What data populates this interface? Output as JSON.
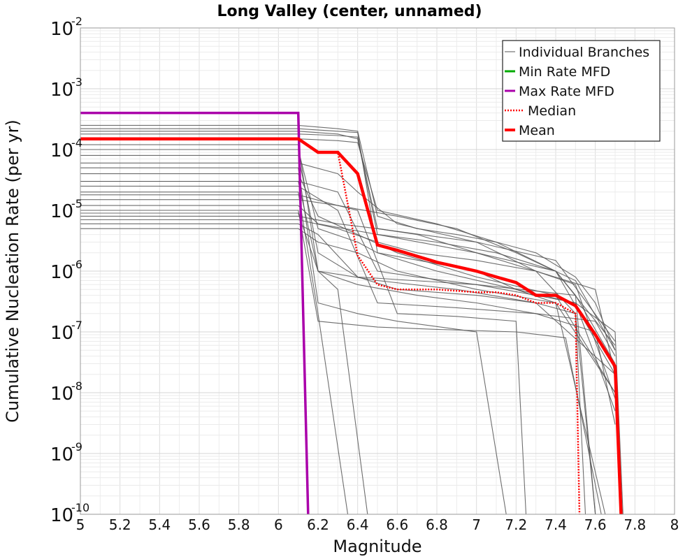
{
  "chart_data": {
    "type": "line",
    "title": "Long Valley (center, unnamed)",
    "xlabel": "Magnitude",
    "ylabel": "Cumulative Nucleation Rate (per yr)",
    "xlim": [
      5,
      8
    ],
    "ylim": [
      1e-10,
      0.01
    ],
    "yscale": "log",
    "grid": true,
    "legend_position": "top-right",
    "x_ticks": [
      "5",
      "5.2",
      "5.4",
      "5.6",
      "5.8",
      "6",
      "6.2",
      "6.4",
      "6.6",
      "6.8",
      "7",
      "7.2",
      "7.4",
      "7.6",
      "7.8",
      "8"
    ],
    "y_ticks": [
      {
        "base": "10",
        "exp": "-10",
        "value": 1e-10
      },
      {
        "base": "10",
        "exp": "-9",
        "value": 1e-09
      },
      {
        "base": "10",
        "exp": "-8",
        "value": 1e-08
      },
      {
        "base": "10",
        "exp": "-7",
        "value": 1e-07
      },
      {
        "base": "10",
        "exp": "-6",
        "value": 1e-06
      },
      {
        "base": "10",
        "exp": "-5",
        "value": 1e-05
      },
      {
        "base": "10",
        "exp": "-4",
        "value": 0.0001
      },
      {
        "base": "10",
        "exp": "-3",
        "value": 0.001
      },
      {
        "base": "10",
        "exp": "-2",
        "value": 0.01
      }
    ],
    "series": [
      {
        "name": "Individual Branches",
        "color": "#555555",
        "style": "thin",
        "lines": [
          {
            "x": [
              5,
              6.1,
              6.3,
              6.4,
              6.5,
              6.7,
              6.9,
              7.1,
              7.3,
              7.5,
              7.6,
              7.7
            ],
            "y": [
              0.00025,
              0.00025,
              0.00022,
              0.0002,
              8e-06,
              5e-06,
              4e-06,
              3e-06,
              2e-06,
              8e-07,
              3e-07,
              5e-08
            ]
          },
          {
            "x": [
              5,
              6.1,
              6.3,
              6.4,
              6.5,
              6.8,
              7.1,
              7.4,
              7.5,
              7.6
            ],
            "y": [
              0.0002,
              0.0002,
              0.00018,
              0.00015,
              4e-06,
              3e-06,
              2e-06,
              1e-06,
              4e-07,
              1e-10
            ]
          },
          {
            "x": [
              5,
              6.1,
              6.2,
              6.3,
              6.45
            ],
            "y": [
              0.00012,
              0.00012,
              1e-06,
              5e-07,
              1e-10
            ]
          },
          {
            "x": [
              5,
              6.1,
              6.2,
              6.4,
              6.6,
              7.0,
              7.3,
              7.5,
              7.55
            ],
            "y": [
              8e-05,
              8e-05,
              2e-06,
              8e-07,
              5e-07,
              4e-07,
              3e-07,
              2e-07,
              1e-10
            ]
          },
          {
            "x": [
              5,
              6.1,
              6.2,
              6.4,
              6.6,
              7.0,
              7.15
            ],
            "y": [
              5e-05,
              5e-05,
              3e-07,
              2e-07,
              1.5e-07,
              1e-07,
              1e-10
            ]
          },
          {
            "x": [
              5,
              6.1,
              6.3,
              6.5,
              6.7,
              7.0,
              7.3,
              7.5,
              7.7,
              7.74
            ],
            "y": [
              3e-05,
              3e-05,
              2e-05,
              1e-06,
              8e-07,
              6e-07,
              4e-07,
              3e-07,
              1e-07,
              1e-10
            ]
          },
          {
            "x": [
              5,
              6.1,
              6.2,
              6.35
            ],
            "y": [
              2e-05,
              2e-05,
              2e-07,
              1e-10
            ]
          },
          {
            "x": [
              5,
              6.1,
              6.3,
              6.4,
              6.6,
              6.9,
              7.2,
              7.25
            ],
            "y": [
              1.5e-05,
              1.5e-05,
              1.2e-05,
              1e-05,
              2e-07,
              1.8e-07,
              1.5e-07,
              1e-10
            ]
          },
          {
            "x": [
              5,
              6.1,
              6.2,
              6.5,
              6.8,
              7.2,
              7.45,
              7.63
            ],
            "y": [
              1e-05,
              1e-05,
              1.5e-07,
              1.2e-07,
              1.1e-07,
              1e-07,
              8e-08,
              1e-10
            ]
          },
          {
            "x": [
              5,
              6.1,
              6.3,
              6.5,
              6.7,
              7.0,
              7.3,
              7.6,
              7.7
            ],
            "y": [
              7e-06,
              7e-06,
              5e-06,
              3e-06,
              2e-06,
              1.5e-06,
              1e-06,
              5e-07,
              2e-08
            ]
          },
          {
            "x": [
              5,
              6.1,
              6.2,
              6.4,
              6.6,
              7.0,
              7.4,
              7.65
            ],
            "y": [
              5e-06,
              5e-06,
              3e-06,
              2e-06,
              1e-06,
              5e-07,
              3e-07,
              1e-10
            ]
          },
          {
            "x": [
              5,
              6.1,
              6.3,
              6.4,
              6.5,
              6.7,
              7.0,
              7.3,
              7.5,
              7.7
            ],
            "y": [
              0.00018,
              0.00018,
              0.00017,
              0.00016,
              5e-06,
              4e-06,
              2e-06,
              1e-06,
              6e-07,
              8e-09
            ]
          },
          {
            "x": [
              5,
              6.1,
              6.2,
              6.4,
              6.5,
              6.8,
              7.2,
              7.5,
              7.7
            ],
            "y": [
              0.0001,
              0.0001,
              5e-06,
              3e-06,
              2e-06,
              1e-06,
              5e-07,
              3e-07,
              5e-09
            ]
          },
          {
            "x": [
              5,
              6.1,
              6.3,
              6.4,
              6.6,
              7.0,
              7.3,
              7.5,
              7.6
            ],
            "y": [
              6e-05,
              6e-05,
              4e-05,
              2e-05,
              6e-06,
              3e-06,
              1e-06,
              2e-07,
              1e-10
            ]
          },
          {
            "x": [
              5,
              6.1,
              6.2,
              6.4,
              6.6,
              7.0,
              7.4,
              7.7
            ],
            "y": [
              4e-05,
              4e-05,
              8e-06,
              4e-06,
              2e-06,
              8e-07,
              4e-07,
              1e-08
            ]
          },
          {
            "x": [
              5,
              6.1,
              6.3,
              6.5,
              6.9,
              7.3,
              7.6,
              7.7
            ],
            "y": [
              2.5e-05,
              2.5e-05,
              1e-05,
              3e-07,
              2.5e-07,
              2e-07,
              1.5e-07,
              4e-08
            ]
          },
          {
            "x": [
              5,
              6.1,
              6.2,
              6.5,
              7.0,
              7.4,
              7.7
            ],
            "y": [
              1.2e-05,
              1.2e-05,
              6e-06,
              4e-06,
              2e-06,
              1e-06,
              6e-08
            ]
          },
          {
            "x": [
              5,
              6.1,
              6.3,
              6.5,
              7.0,
              7.4,
              7.7
            ],
            "y": [
              8e-06,
              8e-06,
              6e-06,
              5e-06,
              3e-06,
              1.5e-06,
              7e-08
            ]
          },
          {
            "x": [
              5,
              6.1,
              6.2,
              6.4,
              7.0,
              7.5,
              7.7
            ],
            "y": [
              6e-06,
              6e-06,
              4e-06,
              8e-07,
              6e-07,
              4e-07,
              3e-08
            ]
          },
          {
            "x": [
              5,
              6.1,
              6.3,
              6.4,
              6.5,
              6.8,
              7.1,
              7.4,
              7.7
            ],
            "y": [
              0.00015,
              0.00015,
              0.00014,
              0.00013,
              1e-05,
              6e-06,
              3e-06,
              1e-06,
              2e-08
            ]
          },
          {
            "x": [
              5,
              6.1,
              6.3,
              6.4,
              6.5,
              7.0,
              7.2,
              7.4,
              7.7
            ],
            "y": [
              0.00022,
              0.00022,
              0.0002,
              0.00019,
              2e-06,
              1e-06,
              5e-07,
              3e-07,
              1e-08
            ]
          },
          {
            "x": [
              5,
              6.1,
              6.2,
              6.4,
              6.7,
              7.0,
              7.3,
              7.6,
              7.7
            ],
            "y": [
              3e-05,
              3e-05,
              1e-06,
              6e-07,
              4e-07,
              3e-07,
              2e-07,
              1e-07,
              3e-09
            ]
          },
          {
            "x": [
              5,
              6.1,
              6.3,
              6.6,
              6.9,
              7.2,
              7.5,
              7.7
            ],
            "y": [
              1.8e-05,
              1.8e-05,
              1.2e-05,
              8e-06,
              5e-06,
              2e-06,
              7e-07,
              5e-08
            ]
          },
          {
            "x": [
              5,
              6.1,
              6.2,
              6.5,
              6.9,
              7.3,
              7.7
            ],
            "y": [
              9e-06,
              9e-06,
              1e-06,
              7e-07,
              5e-07,
              3e-07,
              2e-08
            ]
          }
        ]
      },
      {
        "name": "Min Rate MFD",
        "color": "#00aa00",
        "x": [],
        "y": []
      },
      {
        "name": "Max Rate MFD",
        "color": "#aa00aa",
        "x": [
          5,
          6.1,
          6.15
        ],
        "y": [
          0.0004,
          0.0004,
          1e-10
        ]
      },
      {
        "name": "Median",
        "color": "#ff0000",
        "style": "dotted",
        "x": [
          5,
          6.1,
          6.2,
          6.3,
          6.4,
          6.5,
          6.6,
          6.8,
          7.0,
          7.1,
          7.2,
          7.3,
          7.4,
          7.5,
          7.52
        ],
        "y": [
          0.00015,
          0.00015,
          9e-05,
          9e-05,
          1.8e-06,
          6e-07,
          5e-07,
          5e-07,
          4.5e-07,
          4.5e-07,
          4e-07,
          3e-07,
          3e-07,
          2e-07,
          1e-10
        ]
      },
      {
        "name": "Mean",
        "color": "#ff0000",
        "style": "thick",
        "x": [
          5,
          6.1,
          6.2,
          6.3,
          6.4,
          6.5,
          6.6,
          6.8,
          7.0,
          7.1,
          7.2,
          7.3,
          7.4,
          7.5,
          7.6,
          7.7,
          7.73
        ],
        "y": [
          0.00015,
          0.00015,
          9e-05,
          9e-05,
          4e-05,
          2.7e-06,
          2.2e-06,
          1.4e-06,
          1e-06,
          8e-07,
          6.5e-07,
          4e-07,
          4e-07,
          2.7e-07,
          9e-08,
          2.7e-08,
          1e-10
        ]
      }
    ]
  }
}
